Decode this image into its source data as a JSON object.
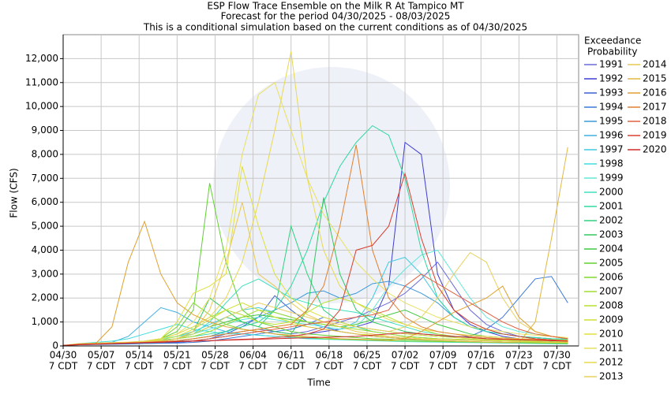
{
  "chart_data": {
    "type": "line",
    "title": "ESP Flow Trace Ensemble on the Milk R At Tampico MT",
    "subtitle": "Forecast for the period 04/30/2025 - 08/03/2025",
    "subtitle2": "This is a conditional simulation based on the current conditions as of 04/30/2025",
    "xlabel": "Time",
    "ylabel": "Flow (CFS)",
    "legend_title": [
      "Exceedance",
      "Probability"
    ],
    "xlim": [
      "04/30",
      "08/03"
    ],
    "xticks": [
      "04/30",
      "05/07",
      "05/14",
      "05/21",
      "05/28",
      "06/04",
      "06/11",
      "06/18",
      "06/25",
      "07/02",
      "07/09",
      "07/16",
      "07/23",
      "07/30"
    ],
    "xtick_suffix": "7 CDT",
    "ylim": [
      0,
      13000
    ],
    "yticks": [
      0,
      {
        "value": 1000,
        "label": "1,000"
      },
      {
        "value": 2000,
        "label": "2,000"
      },
      {
        "value": 3000,
        "label": "3,000"
      },
      {
        "value": 4000,
        "label": "4,000"
      },
      {
        "value": 5000,
        "label": "5,000"
      },
      {
        "value": 6000,
        "label": "6,000"
      },
      {
        "value": 7000,
        "label": "7,000"
      },
      {
        "value": 8000,
        "label": "8,000"
      },
      {
        "value": 9000,
        "label": "9,000"
      },
      {
        "value": 10000,
        "label": "10,000"
      },
      {
        "value": 11000,
        "label": "11,000"
      },
      {
        "value": 12000,
        "label": "12,000"
      }
    ],
    "grid": true,
    "x": [
      "04/30",
      "05/03",
      "05/06",
      "05/09",
      "05/12",
      "05/15",
      "05/18",
      "05/21",
      "05/24",
      "05/27",
      "05/30",
      "06/02",
      "06/05",
      "06/08",
      "06/11",
      "06/14",
      "06/17",
      "06/20",
      "06/23",
      "06/26",
      "06/29",
      "07/02",
      "07/05",
      "07/08",
      "07/11",
      "07/14",
      "07/17",
      "07/20",
      "07/23",
      "07/26",
      "07/29",
      "08/01"
    ],
    "series": [
      {
        "name": "1991",
        "color": "#6a6ad8",
        "values": [
          20,
          60,
          80,
          90,
          100,
          120,
          150,
          200,
          300,
          400,
          500,
          600,
          700,
          600,
          500,
          600,
          800,
          1000,
          1200,
          1500,
          1800,
          2200,
          2800,
          3500,
          2500,
          1500,
          900,
          600,
          400,
          300,
          250,
          200
        ]
      },
      {
        "name": "1992",
        "color": "#3d3dd0",
        "values": [
          20,
          80,
          90,
          100,
          100,
          110,
          120,
          150,
          200,
          300,
          400,
          500,
          600,
          500,
          400,
          500,
          600,
          700,
          800,
          1000,
          2500,
          8500,
          8000,
          3000,
          1500,
          900,
          600,
          400,
          300,
          250,
          200,
          180
        ]
      },
      {
        "name": "1993",
        "color": "#3a60d0",
        "values": [
          20,
          50,
          60,
          70,
          80,
          100,
          120,
          150,
          200,
          300,
          500,
          800,
          1200,
          2100,
          1500,
          1000,
          800,
          600,
          500,
          400,
          350,
          300,
          250,
          220,
          200,
          180,
          160,
          150,
          140,
          130,
          120,
          110
        ]
      },
      {
        "name": "1994",
        "color": "#3a78d8",
        "values": [
          20,
          60,
          70,
          80,
          90,
          100,
          110,
          120,
          150,
          200,
          300,
          400,
          500,
          600,
          700,
          900,
          1200,
          1000,
          800,
          700,
          600,
          500,
          450,
          400,
          380,
          400,
          700,
          1200,
          2000,
          2800,
          2900,
          1800
        ]
      },
      {
        "name": "1995",
        "color": "#3a98d8",
        "values": [
          20,
          70,
          80,
          90,
          100,
          120,
          150,
          200,
          300,
          400,
          600,
          900,
          1200,
          1500,
          1800,
          2200,
          2300,
          2000,
          2200,
          2600,
          2700,
          2500,
          2200,
          1800,
          1200,
          800,
          600,
          500,
          400,
          350,
          300,
          280
        ]
      },
      {
        "name": "1996",
        "color": "#40b0e0",
        "values": [
          20,
          80,
          100,
          150,
          400,
          1000,
          1600,
          1400,
          1000,
          800,
          600,
          500,
          450,
          400,
          350,
          320,
          300,
          280,
          260,
          240,
          220,
          200,
          190,
          180,
          170,
          160,
          150,
          140,
          130,
          120,
          110,
          100
        ]
      },
      {
        "name": "1997",
        "color": "#40c8e0",
        "values": [
          20,
          90,
          100,
          120,
          150,
          200,
          300,
          400,
          600,
          900,
          1200,
          1500,
          1600,
          1400,
          1200,
          1000,
          800,
          700,
          1000,
          2000,
          3500,
          3700,
          3000,
          2000,
          1200,
          800,
          600,
          500,
          400,
          350,
          300,
          280
        ]
      },
      {
        "name": "1998",
        "color": "#40dcdc",
        "values": [
          20,
          100,
          150,
          200,
          300,
          500,
          700,
          900,
          700,
          600,
          500,
          500,
          450,
          400,
          350,
          300,
          280,
          260,
          240,
          220,
          200,
          180,
          170,
          160,
          150,
          140,
          130,
          120,
          110,
          100,
          90,
          80
        ]
      },
      {
        "name": "1999",
        "color": "#60e8d8",
        "values": [
          20,
          80,
          100,
          120,
          150,
          200,
          300,
          400,
          500,
          700,
          900,
          1100,
          1200,
          1100,
          1000,
          900,
          800,
          700,
          800,
          1500,
          2500,
          3200,
          3800,
          4000,
          3000,
          2000,
          1200,
          800,
          600,
          500,
          400,
          300
        ]
      },
      {
        "name": "2000",
        "color": "#40e0c0",
        "values": [
          20,
          60,
          80,
          100,
          120,
          150,
          200,
          300,
          500,
          1000,
          1800,
          2500,
          2800,
          2400,
          2000,
          1800,
          1600,
          1500,
          1400,
          1200,
          1000,
          800,
          600,
          500,
          400,
          350,
          300,
          280,
          260,
          240,
          220,
          200
        ]
      },
      {
        "name": "2001",
        "color": "#30d8a0",
        "values": [
          20,
          80,
          100,
          120,
          150,
          200,
          250,
          300,
          400,
          500,
          600,
          800,
          1000,
          1500,
          2500,
          4000,
          6000,
          7500,
          8500,
          9200,
          8800,
          7000,
          4000,
          2000,
          1200,
          800,
          600,
          500,
          400,
          350,
          300,
          280
        ]
      },
      {
        "name": "2002",
        "color": "#30d080",
        "values": [
          20,
          70,
          90,
          110,
          130,
          150,
          200,
          300,
          500,
          800,
          1200,
          1000,
          800,
          1500,
          5000,
          3000,
          1500,
          1000,
          800,
          600,
          500,
          400,
          350,
          300,
          280,
          260,
          240,
          220,
          200,
          180,
          160,
          150
        ]
      },
      {
        "name": "2003",
        "color": "#30c860",
        "values": [
          20,
          60,
          80,
          100,
          120,
          150,
          200,
          300,
          600,
          2000,
          1500,
          1000,
          800,
          600,
          500,
          1500,
          6200,
          3000,
          1500,
          1000,
          800,
          600,
          500,
          450,
          400,
          350,
          300,
          280,
          260,
          240,
          220,
          200
        ]
      },
      {
        "name": "2004",
        "color": "#40c840",
        "values": [
          20,
          70,
          90,
          110,
          130,
          150,
          200,
          300,
          500,
          800,
          1000,
          1200,
          1300,
          1200,
          1100,
          1000,
          900,
          800,
          900,
          1100,
          1300,
          1500,
          1200,
          900,
          700,
          500,
          400,
          350,
          300,
          280,
          260,
          240
        ]
      },
      {
        "name": "2005",
        "color": "#60d030",
        "values": [
          20,
          80,
          100,
          120,
          150,
          200,
          300,
          600,
          1500,
          6800,
          3500,
          1500,
          1000,
          800,
          600,
          500,
          450,
          400,
          350,
          300,
          280,
          260,
          240,
          220,
          200,
          180,
          160,
          150,
          140,
          130,
          120,
          110
        ]
      },
      {
        "name": "2006",
        "color": "#80d830",
        "values": [
          20,
          60,
          80,
          100,
          120,
          150,
          300,
          800,
          1800,
          1300,
          900,
          700,
          600,
          500,
          400,
          350,
          300,
          280,
          260,
          240,
          220,
          200,
          190,
          180,
          170,
          160,
          150,
          140,
          130,
          120,
          110,
          100
        ]
      },
      {
        "name": "2007",
        "color": "#a0dc30",
        "values": [
          20,
          70,
          90,
          110,
          130,
          160,
          200,
          300,
          400,
          600,
          900,
          1200,
          1500,
          1400,
          1200,
          1000,
          900,
          800,
          700,
          600,
          500,
          400,
          350,
          300,
          280,
          260,
          240,
          220,
          200,
          180,
          160,
          150
        ]
      },
      {
        "name": "2008",
        "color": "#b8e030",
        "values": [
          20,
          80,
          100,
          120,
          150,
          200,
          300,
          500,
          800,
          1200,
          1500,
          1300,
          1000,
          900,
          1000,
          1400,
          1800,
          2000,
          1800,
          1500,
          1200,
          900,
          700,
          500,
          400,
          350,
          300,
          280,
          260,
          240,
          220,
          200
        ]
      },
      {
        "name": "2009",
        "color": "#d0e030",
        "values": [
          20,
          90,
          110,
          130,
          150,
          180,
          250,
          400,
          700,
          1100,
          1500,
          1800,
          1500,
          1200,
          1000,
          800,
          700,
          600,
          500,
          450,
          400,
          350,
          300,
          280,
          260,
          240,
          220,
          200,
          180,
          160,
          150,
          140
        ]
      },
      {
        "name": "2010",
        "color": "#e0e040",
        "values": [
          20,
          80,
          100,
          120,
          140,
          170,
          300,
          1000,
          2200,
          2500,
          3000,
          7500,
          5000,
          3000,
          2000,
          1500,
          1200,
          1000,
          800,
          700,
          600,
          500,
          450,
          400,
          350,
          300,
          280,
          260,
          240,
          220,
          200,
          180
        ]
      },
      {
        "name": "2011",
        "color": "#e8e060",
        "values": [
          20,
          90,
          110,
          130,
          150,
          200,
          300,
          500,
          1000,
          2000,
          4000,
          8000,
          10500,
          11000,
          9000,
          7000,
          5500,
          4500,
          3500,
          2800,
          2200,
          1800,
          1500,
          1200,
          1000,
          800,
          700,
          600,
          500,
          450,
          400,
          350
        ]
      },
      {
        "name": "2012",
        "color": "#e8d850",
        "values": [
          20,
          100,
          120,
          140,
          160,
          200,
          300,
          500,
          800,
          1200,
          2000,
          3500,
          6000,
          9000,
          12300,
          7000,
          4000,
          2500,
          1800,
          1400,
          1100,
          900,
          700,
          600,
          500,
          450,
          400,
          350,
          300,
          280,
          260,
          240
        ]
      },
      {
        "name": "2013",
        "color": "#e8d060",
        "values": [
          20,
          90,
          110,
          130,
          150,
          180,
          220,
          300,
          500,
          800,
          1200,
          1500,
          1800,
          1600,
          1400,
          1200,
          1000,
          900,
          800,
          700,
          600,
          800,
          1200,
          2000,
          3000,
          3900,
          3500,
          2000,
          1000,
          600,
          400,
          300
        ]
      },
      {
        "name": "2014",
        "color": "#e8c850",
        "values": [
          20,
          80,
          100,
          120,
          140,
          170,
          200,
          300,
          600,
          1500,
          3500,
          6000,
          3000,
          2500,
          1800,
          1300,
          1000,
          800,
          600,
          500,
          400,
          350,
          300,
          280,
          260,
          240,
          220,
          200,
          180,
          160,
          150,
          140
        ]
      },
      {
        "name": "2015",
        "color": "#e0b840",
        "values": [
          20,
          70,
          90,
          110,
          130,
          150,
          180,
          220,
          300,
          400,
          500,
          600,
          700,
          800,
          900,
          800,
          700,
          600,
          500,
          400,
          350,
          300,
          260,
          230,
          200,
          180,
          160,
          150,
          140,
          1000,
          4500,
          8300
        ]
      },
      {
        "name": "2016",
        "color": "#e0a030",
        "values": [
          20,
          80,
          100,
          800,
          3500,
          5200,
          3000,
          1800,
          1300,
          1000,
          800,
          700,
          600,
          500,
          450,
          400,
          350,
          300,
          280,
          260,
          240,
          300,
          600,
          1000,
          1400,
          1700,
          2000,
          2500,
          1200,
          600,
          400,
          300
        ]
      },
      {
        "name": "2017",
        "color": "#e08030",
        "values": [
          20,
          60,
          80,
          100,
          120,
          150,
          180,
          220,
          300,
          400,
          500,
          600,
          700,
          800,
          900,
          1500,
          2500,
          5000,
          8400,
          4000,
          2000,
          1200,
          800,
          600,
          500,
          400,
          350,
          300,
          280,
          260,
          240,
          220
        ]
      },
      {
        "name": "2018",
        "color": "#e06040",
        "values": [
          20,
          50,
          70,
          90,
          110,
          130,
          150,
          180,
          220,
          300,
          400,
          500,
          600,
          700,
          800,
          900,
          1000,
          1100,
          1200,
          1300,
          1500,
          2500,
          3000,
          2600,
          2200,
          1800,
          1400,
          1000,
          700,
          500,
          400,
          300
        ]
      },
      {
        "name": "2019",
        "color": "#d84030",
        "values": [
          20,
          60,
          80,
          100,
          120,
          140,
          160,
          180,
          200,
          220,
          250,
          280,
          300,
          350,
          400,
          500,
          700,
          1500,
          4000,
          4200,
          5000,
          7200,
          4500,
          2500,
          1500,
          1000,
          700,
          500,
          400,
          300,
          250,
          200
        ]
      },
      {
        "name": "2020",
        "color": "#d02828",
        "values": [
          20,
          60,
          80,
          100,
          120,
          140,
          160,
          180,
          200,
          220,
          240,
          260,
          280,
          300,
          320,
          340,
          360,
          380,
          400,
          450,
          500,
          550,
          500,
          450,
          400,
          350,
          300,
          280,
          260,
          240,
          220,
          200
        ]
      }
    ]
  }
}
